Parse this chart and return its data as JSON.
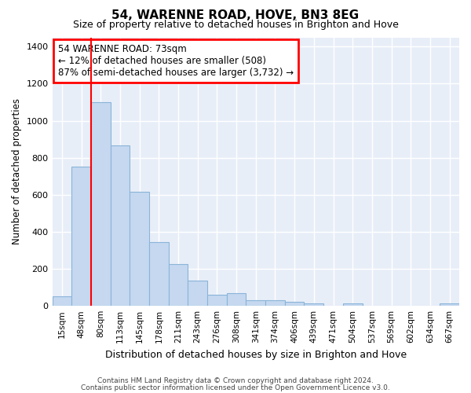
{
  "title": "54, WARENNE ROAD, HOVE, BN3 8EG",
  "subtitle": "Size of property relative to detached houses in Brighton and Hove",
  "xlabel": "Distribution of detached houses by size in Brighton and Hove",
  "ylabel": "Number of detached properties",
  "footer1": "Contains HM Land Registry data © Crown copyright and database right 2024.",
  "footer2": "Contains public sector information licensed under the Open Government Licence v3.0.",
  "categories": [
    "15sqm",
    "48sqm",
    "80sqm",
    "113sqm",
    "145sqm",
    "178sqm",
    "211sqm",
    "243sqm",
    "276sqm",
    "308sqm",
    "341sqm",
    "374sqm",
    "406sqm",
    "439sqm",
    "471sqm",
    "504sqm",
    "537sqm",
    "569sqm",
    "602sqm",
    "634sqm",
    "667sqm"
  ],
  "values": [
    50,
    750,
    1100,
    865,
    615,
    345,
    225,
    135,
    60,
    70,
    30,
    30,
    20,
    15,
    0,
    12,
    0,
    0,
    0,
    0,
    12
  ],
  "bar_color": "#c5d8f0",
  "bar_edge_color": "#8ab4d8",
  "background_color": "#e8eef8",
  "grid_color": "#ffffff",
  "red_line_index": 2,
  "annotation_line1": "54 WARENNE ROAD: 73sqm",
  "annotation_line2": "← 12% of detached houses are smaller (508)",
  "annotation_line3": "87% of semi-detached houses are larger (3,732) →",
  "ylim": [
    0,
    1450
  ],
  "yticks": [
    0,
    200,
    400,
    600,
    800,
    1000,
    1200,
    1400
  ],
  "title_fontsize": 11,
  "subtitle_fontsize": 9,
  "fig_bg": "#ffffff"
}
